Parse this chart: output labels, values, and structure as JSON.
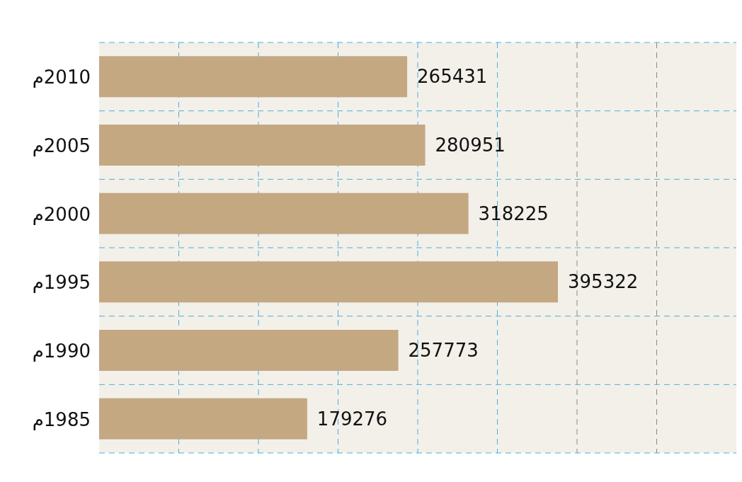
{
  "chart_data": {
    "type": "bar",
    "orientation": "horizontal",
    "categories": [
      "2010م",
      "2005م",
      "2000م",
      "1995م",
      "1990م",
      "1985م"
    ],
    "values": [
      265431,
      280951,
      318225,
      395322,
      257773,
      179276
    ],
    "color": "#c4a882",
    "data_labels": true,
    "grid": true
  }
}
